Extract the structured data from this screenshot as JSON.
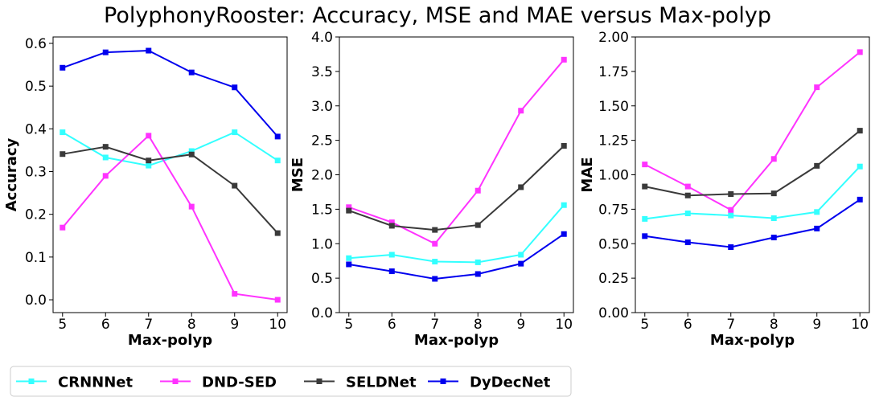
{
  "figure_title": "PolyphonyRooster: Accuracy, MSE and MAE versus Max-polyp",
  "legend": {
    "placement": "bottom-left",
    "entries": [
      "CRNNNet",
      "DND-SED",
      "SELDNet",
      "DyDecNet"
    ]
  },
  "colors": {
    "CRNNNet": "#33ffff",
    "DND-SED": "#ff33ff",
    "SELDNet": "#3a3a3a",
    "DyDecNet": "#0000ee"
  },
  "chart_data": [
    {
      "type": "line",
      "title": "",
      "xlabel": "Max-polyp",
      "ylabel": "Accuracy",
      "x": [
        5,
        6,
        7,
        8,
        9,
        10
      ],
      "xticks": [
        "5",
        "6",
        "7",
        "8",
        "9",
        "10"
      ],
      "ylim": [
        -0.03,
        0.615
      ],
      "yticks": [
        "0.0",
        "0.1",
        "0.2",
        "0.3",
        "0.4",
        "0.5",
        "0.6"
      ],
      "grid": false,
      "series": [
        {
          "name": "CRNNNet",
          "values": [
            0.392,
            0.333,
            0.314,
            0.348,
            0.392,
            0.326
          ]
        },
        {
          "name": "DND-SED",
          "values": [
            0.169,
            0.29,
            0.384,
            0.218,
            0.014,
            0.0
          ]
        },
        {
          "name": "SELDNet",
          "values": [
            0.341,
            0.358,
            0.326,
            0.34,
            0.267,
            0.156
          ]
        },
        {
          "name": "DyDecNet",
          "values": [
            0.543,
            0.579,
            0.583,
            0.532,
            0.497,
            0.382
          ]
        }
      ]
    },
    {
      "type": "line",
      "title": "",
      "xlabel": "Max-polyp",
      "ylabel": "MSE",
      "x": [
        5,
        6,
        7,
        8,
        9,
        10
      ],
      "xticks": [
        "5",
        "6",
        "7",
        "8",
        "9",
        "10"
      ],
      "ylim": [
        0.0,
        4.0
      ],
      "yticks": [
        "0.0",
        "0.5",
        "1.0",
        "1.5",
        "2.0",
        "2.5",
        "3.0",
        "3.5",
        "4.0"
      ],
      "grid": false,
      "series": [
        {
          "name": "CRNNNet",
          "values": [
            0.79,
            0.84,
            0.74,
            0.73,
            0.84,
            1.56
          ]
        },
        {
          "name": "DND-SED",
          "values": [
            1.53,
            1.31,
            1.0,
            1.77,
            2.93,
            3.67
          ]
        },
        {
          "name": "SELDNet",
          "values": [
            1.48,
            1.26,
            1.2,
            1.27,
            1.82,
            2.42
          ]
        },
        {
          "name": "DyDecNet",
          "values": [
            0.7,
            0.6,
            0.49,
            0.56,
            0.71,
            1.14
          ]
        }
      ]
    },
    {
      "type": "line",
      "title": "",
      "xlabel": "Max-polyp",
      "ylabel": "MAE",
      "x": [
        5,
        6,
        7,
        8,
        9,
        10
      ],
      "xticks": [
        "5",
        "6",
        "7",
        "8",
        "9",
        "10"
      ],
      "ylim": [
        0.0,
        2.0
      ],
      "yticks": [
        "0.00",
        "0.25",
        "0.50",
        "0.75",
        "1.00",
        "1.25",
        "1.50",
        "1.75",
        "2.00"
      ],
      "grid": false,
      "series": [
        {
          "name": "CRNNNet",
          "values": [
            0.68,
            0.72,
            0.705,
            0.685,
            0.73,
            1.06
          ]
        },
        {
          "name": "DND-SED",
          "values": [
            1.075,
            0.915,
            0.745,
            1.115,
            1.635,
            1.89
          ]
        },
        {
          "name": "SELDNet",
          "values": [
            0.915,
            0.85,
            0.86,
            0.865,
            1.065,
            1.32
          ]
        },
        {
          "name": "DyDecNet",
          "values": [
            0.555,
            0.51,
            0.475,
            0.545,
            0.61,
            0.82
          ]
        }
      ]
    }
  ]
}
